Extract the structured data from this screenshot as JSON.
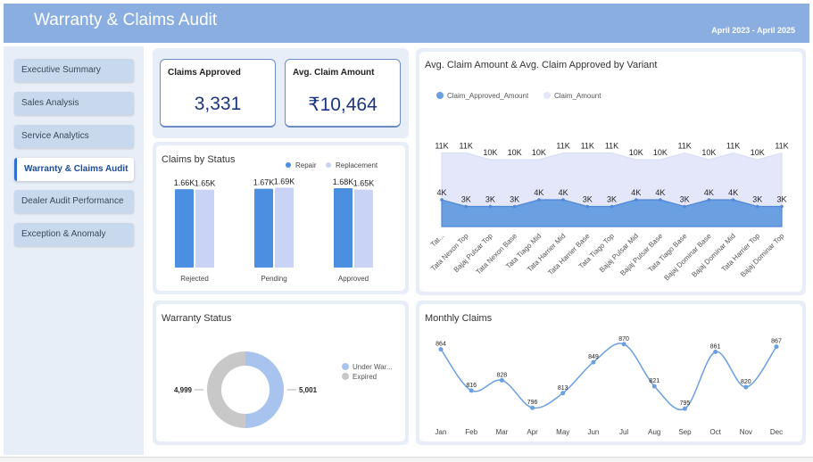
{
  "header": {
    "title": "Warranty & Claims Audit",
    "period": "April 2023 - April 2025"
  },
  "sidebar": {
    "items": [
      {
        "label": "Executive Summary",
        "active": false
      },
      {
        "label": "Sales Analysis",
        "active": false
      },
      {
        "label": "Service Analytics",
        "active": false
      },
      {
        "label": "Warranty & Claims Audit",
        "active": true
      },
      {
        "label": "Dealer Audit Performance",
        "active": false
      },
      {
        "label": "Exception & Anomaly",
        "active": false
      }
    ]
  },
  "kpis": {
    "claims_approved": {
      "label": "Claims Approved",
      "value": "3,331"
    },
    "avg_claim_amount": {
      "label": "Avg. Claim Amount",
      "value": "₹10,464"
    }
  },
  "colors": {
    "accent": "#4a90e2",
    "header": "#8aaee0",
    "light_series": "#c9d3f5",
    "kpi_value": "#1d3580"
  },
  "chart_data": [
    {
      "id": "claims_by_status",
      "type": "bar",
      "title": "Claims by Status",
      "categories": [
        "Rejected",
        "Pending",
        "Approved"
      ],
      "series": [
        {
          "name": "Repair",
          "values": [
            1660,
            1670,
            1680
          ],
          "labels": [
            "1.66K",
            "1.67K",
            "1.68K"
          ],
          "color": "#4a8fe0"
        },
        {
          "name": "Replacement",
          "values": [
            1650,
            1690,
            1650
          ],
          "labels": [
            "1.65K",
            "1.69K",
            "1.65K"
          ],
          "color": "#c9d3f5"
        }
      ],
      "legend": "top-right"
    },
    {
      "id": "variant_area",
      "type": "area",
      "title": "Avg. Claim Amount & Avg. Claim Approved by Variant",
      "categories": [
        "Tat...",
        "Tata Nexon Top",
        "Bajaj Pulsar Top",
        "Tata Nexon Base",
        "Tata Tiago Mid",
        "Tata Harrier Mid",
        "Tata Harrier Base",
        "Tata Tiago Top",
        "Bajaj Pulsar Mid",
        "Bajaj Pulsar Base",
        "Tata Tiago Base",
        "Bajaj Dominar Base",
        "Bajaj Dominar Mid",
        "Tata Harrier Top",
        "Bajaj Dominar Top"
      ],
      "series": [
        {
          "name": "Claim_Approved_Amount",
          "values": [
            4,
            3,
            3,
            3,
            4,
            4,
            3,
            3,
            4,
            4,
            3,
            4,
            4,
            3,
            3
          ],
          "labels": [
            "4K",
            "3K",
            "3K",
            "3K",
            "4K",
            "4K",
            "3K",
            "3K",
            "4K",
            "4K",
            "3K",
            "4K",
            "4K",
            "3K",
            "3K"
          ],
          "color": "#6a9fe2"
        },
        {
          "name": "Claim_Amount",
          "values": [
            11,
            11,
            10,
            10,
            10,
            11,
            11,
            11,
            10,
            10,
            11,
            10,
            11,
            10,
            11
          ],
          "labels": [
            "11K",
            "11K",
            "10K",
            "10K",
            "10K",
            "11K",
            "11K",
            "11K",
            "10K",
            "10K",
            "11K",
            "10K",
            "11K",
            "10K",
            "11K"
          ],
          "color": "#e3e7f9"
        }
      ],
      "legend": "top-left"
    },
    {
      "id": "warranty_status",
      "type": "pie",
      "title": "Warranty Status",
      "labels": [
        "Under War...",
        "Expired"
      ],
      "values": [
        5001,
        4999
      ],
      "value_labels": [
        "5,001",
        "4,999"
      ],
      "colors": [
        "#a8c4ee",
        "#c8c8c8"
      ],
      "legend": "right"
    },
    {
      "id": "monthly_claims",
      "type": "line",
      "title": "Monthly Claims",
      "categories": [
        "Jan",
        "Feb",
        "Mar",
        "Apr",
        "May",
        "Jun",
        "Jul",
        "Aug",
        "Sep",
        "Oct",
        "Nov",
        "Dec"
      ],
      "values": [
        864,
        816,
        828,
        796,
        813,
        849,
        870,
        821,
        795,
        861,
        820,
        867
      ],
      "color": "#6a9fe2"
    }
  ]
}
